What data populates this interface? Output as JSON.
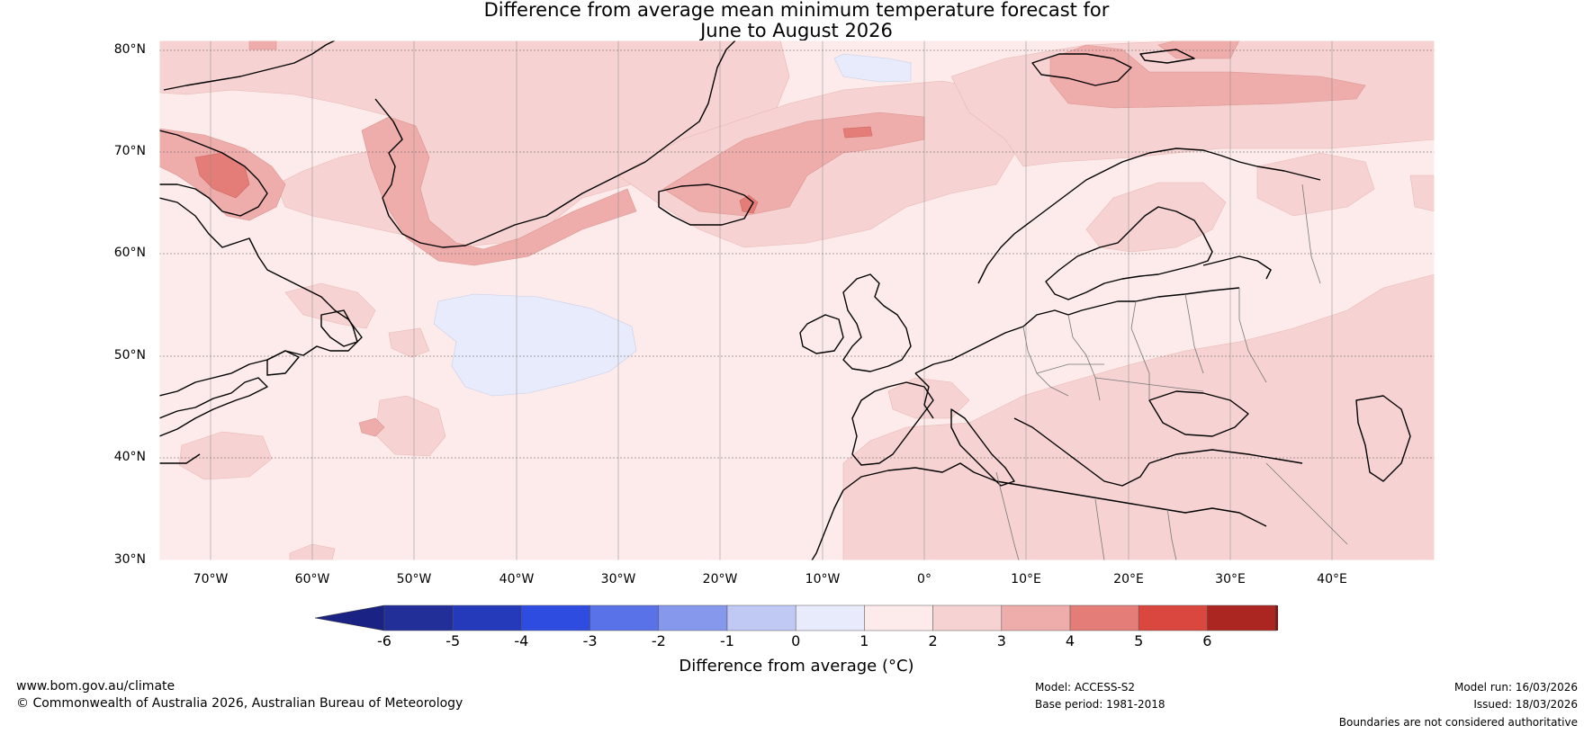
{
  "title": {
    "line1": "Difference from average mean minimum temperature forecast for",
    "line2": "June to August 2026"
  },
  "map": {
    "latitude_labels": [
      "80°N",
      "70°N",
      "60°N",
      "50°N",
      "40°N",
      "30°N"
    ],
    "longitude_labels": [
      "70°W",
      "60°W",
      "50°W",
      "40°W",
      "30°W",
      "20°W",
      "10°W",
      "0°",
      "10°E",
      "20°E",
      "30°E",
      "40°E"
    ],
    "extent": {
      "lon_min": -75,
      "lon_max": 50,
      "lat_min": 30,
      "lat_max": 81
    },
    "regions": "Greenland, Iceland, North Atlantic, Europe, North Africa, Eastern Canada"
  },
  "colorbar": {
    "ticks": [
      "-6",
      "-5",
      "-4",
      "-3",
      "-2",
      "-1",
      "0",
      "1",
      "2",
      "3",
      "4",
      "5",
      "6"
    ],
    "colors": [
      "#232f98",
      "#253aba",
      "#2f4ce0",
      "#5a72e8",
      "#8598ec",
      "#c0c8f4",
      "#e8ebfb",
      "#fcebea",
      "#f6d3d2",
      "#eeadab",
      "#e47d78",
      "#d9473e",
      "#ab2521"
    ],
    "under_color": "#1a2383",
    "over_color": "#781c19",
    "label": "Difference from average (°C)"
  },
  "footer": {
    "website": "www.bom.gov.au/climate",
    "copyright": "© Commonwealth of Australia 2026, Australian Bureau of Meteorology",
    "model": "Model: ACCESS-S2",
    "base_period": "Base period: 1981-2018",
    "model_run": "Model run: 16/03/2026",
    "issued": "Issued: 18/03/2026",
    "disclaimer": "Boundaries are not considered authoritative"
  }
}
